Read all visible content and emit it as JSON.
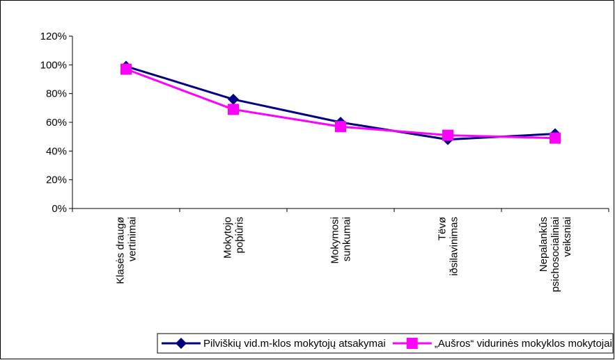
{
  "chart_data": {
    "type": "line",
    "categories": [
      "Klasės draugø\nvertinimai",
      "Mokytojo\npoþiûris",
      "Mokymosi\nsunkumai",
      "Tëvø\niðsilavinimas",
      "Nepalankûs\npsichosocialiniai\nveiksniai"
    ],
    "series": [
      {
        "name": "Pilviškių vid.m-klos mokytojų atsakymai",
        "color": "#000080",
        "marker": "diamond",
        "values": [
          99,
          76,
          60,
          48,
          52
        ]
      },
      {
        "name": "„Aušros“ vidurinės mokyklos mokytojai",
        "color": "#ff00ff",
        "marker": "square",
        "values": [
          97,
          69,
          57,
          51,
          49
        ]
      }
    ],
    "ylim": [
      0,
      120
    ],
    "yticks": [
      {
        "value": 0,
        "label": "0%"
      },
      {
        "value": 20,
        "label": "20%"
      },
      {
        "value": 40,
        "label": "40%"
      },
      {
        "value": 60,
        "label": "60%"
      },
      {
        "value": 80,
        "label": "80%"
      },
      {
        "value": 100,
        "label": "100%"
      },
      {
        "value": 120,
        "label": "120%"
      }
    ],
    "legend": "bottom"
  }
}
